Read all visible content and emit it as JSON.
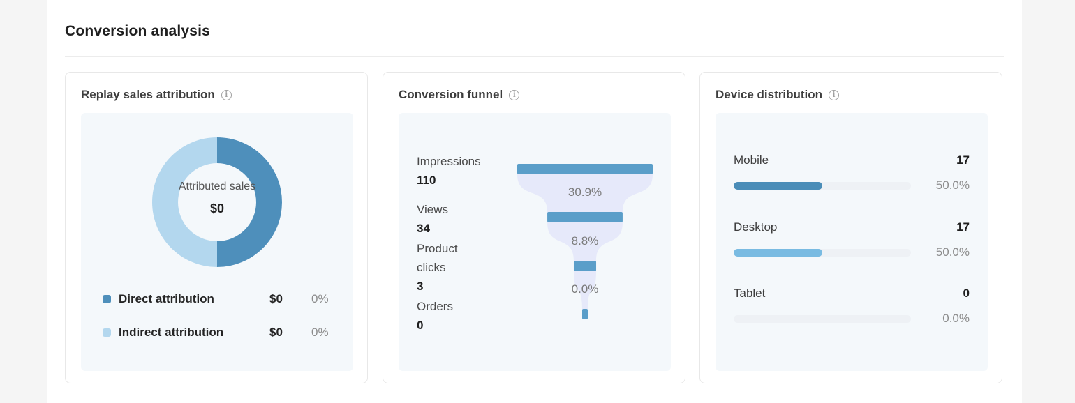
{
  "section": {
    "title": "Conversion analysis"
  },
  "attribution": {
    "title": "Replay sales attribution",
    "center_label": "Attributed sales",
    "center_value": "$0",
    "segments": [
      {
        "name": "Direct attribution",
        "value": "$0",
        "pct": "0%",
        "color": "#4e8fbb",
        "share": 0.5
      },
      {
        "name": "Indirect attribution",
        "value": "$0",
        "pct": "0%",
        "color": "#b3d7ee",
        "share": 0.5
      }
    ]
  },
  "funnel": {
    "title": "Conversion funnel",
    "bar_color": "#5a9ec9",
    "shape_color": "#e6e9fa",
    "stages": [
      {
        "label": "Impressions",
        "value": "110",
        "count": 110
      },
      {
        "label": "Views",
        "value": "34",
        "count": 34
      },
      {
        "label": "Product clicks",
        "value": "3",
        "count": 3
      },
      {
        "label": "Orders",
        "value": "0",
        "count": 0
      }
    ],
    "rates": [
      "30.9%",
      "8.8%",
      "0.0%"
    ]
  },
  "device": {
    "title": "Device distribution",
    "items": [
      {
        "name": "Mobile",
        "count": "17",
        "pct": "50.0%",
        "fraction": 0.5,
        "color": "#4a8db8"
      },
      {
        "name": "Desktop",
        "count": "17",
        "pct": "50.0%",
        "fraction": 0.5,
        "color": "#79bbe2"
      },
      {
        "name": "Tablet",
        "count": "0",
        "pct": "0.0%",
        "fraction": 0.0,
        "color": "#79bbe2"
      }
    ]
  }
}
